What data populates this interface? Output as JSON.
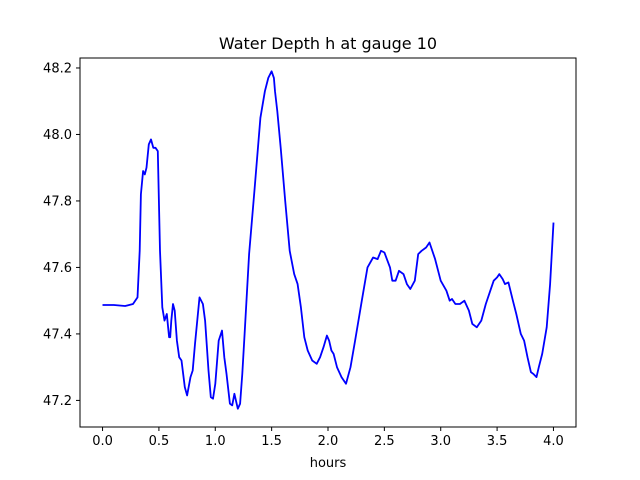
{
  "chart_data": {
    "type": "line",
    "title": "Water Depth h at gauge 10",
    "xlabel": "hours",
    "ylabel": "",
    "xlim": [
      -0.2,
      4.2
    ],
    "ylim": [
      47.12,
      48.23
    ],
    "xticks": [
      0.0,
      0.5,
      1.0,
      1.5,
      2.0,
      2.5,
      3.0,
      3.5,
      4.0
    ],
    "xtick_labels": [
      "0.0",
      "0.5",
      "1.0",
      "1.5",
      "2.0",
      "2.5",
      "3.0",
      "3.5",
      "4.0"
    ],
    "yticks": [
      47.2,
      47.4,
      47.6,
      47.8,
      48.0,
      48.2
    ],
    "ytick_labels": [
      "47.2",
      "47.4",
      "47.6",
      "47.8",
      "48.0",
      "48.2"
    ],
    "grid": false,
    "series": [
      {
        "color": "#0000ff",
        "x": [
          0.0,
          0.1,
          0.2,
          0.27,
          0.31,
          0.33,
          0.34,
          0.36,
          0.375,
          0.39,
          0.41,
          0.43,
          0.45,
          0.47,
          0.49,
          0.51,
          0.53,
          0.55,
          0.57,
          0.59,
          0.6,
          0.61,
          0.625,
          0.64,
          0.66,
          0.68,
          0.7,
          0.73,
          0.75,
          0.78,
          0.8,
          0.82,
          0.86,
          0.89,
          0.91,
          0.94,
          0.96,
          0.98,
          1.0,
          1.03,
          1.06,
          1.08,
          1.1,
          1.13,
          1.15,
          1.17,
          1.2,
          1.22,
          1.24,
          1.26,
          1.3,
          1.35,
          1.4,
          1.44,
          1.47,
          1.5,
          1.52,
          1.53,
          1.55,
          1.58,
          1.62,
          1.66,
          1.7,
          1.73,
          1.76,
          1.79,
          1.82,
          1.86,
          1.9,
          1.93,
          1.96,
          1.99,
          2.01,
          2.03,
          2.05,
          2.08,
          2.12,
          2.16,
          2.2,
          2.24,
          2.3,
          2.35,
          2.4,
          2.44,
          2.47,
          2.5,
          2.55,
          2.57,
          2.6,
          2.63,
          2.67,
          2.7,
          2.73,
          2.77,
          2.8,
          2.83,
          2.87,
          2.9,
          2.95,
          3.0,
          3.05,
          3.08,
          3.1,
          3.13,
          3.17,
          3.21,
          3.25,
          3.28,
          3.32,
          3.36,
          3.4,
          3.44,
          3.47,
          3.5,
          3.52,
          3.55,
          3.57,
          3.6,
          3.64,
          3.67,
          3.71,
          3.74,
          3.77,
          3.8,
          3.82,
          3.85,
          3.87,
          3.9,
          3.94,
          3.97,
          4.0
        ],
        "y": [
          47.487,
          47.487,
          47.484,
          47.49,
          47.51,
          47.65,
          47.82,
          47.89,
          47.88,
          47.9,
          47.97,
          47.985,
          47.96,
          47.96,
          47.95,
          47.65,
          47.48,
          47.44,
          47.46,
          47.39,
          47.39,
          47.44,
          47.49,
          47.47,
          47.38,
          47.33,
          47.32,
          47.24,
          47.215,
          47.27,
          47.29,
          47.37,
          47.51,
          47.49,
          47.44,
          47.29,
          47.21,
          47.205,
          47.25,
          47.38,
          47.41,
          47.33,
          47.28,
          47.19,
          47.185,
          47.22,
          47.175,
          47.19,
          47.28,
          47.4,
          47.64,
          47.84,
          48.05,
          48.13,
          48.17,
          48.19,
          48.17,
          48.13,
          48.07,
          47.96,
          47.8,
          47.65,
          47.58,
          47.55,
          47.48,
          47.39,
          47.35,
          47.32,
          47.31,
          47.33,
          47.36,
          47.395,
          47.38,
          47.35,
          47.34,
          47.3,
          47.27,
          47.25,
          47.3,
          47.38,
          47.5,
          47.6,
          47.63,
          47.625,
          47.65,
          47.645,
          47.6,
          47.56,
          47.56,
          47.59,
          47.58,
          47.55,
          47.535,
          47.56,
          47.64,
          47.65,
          47.66,
          47.675,
          47.625,
          47.56,
          47.53,
          47.5,
          47.505,
          47.49,
          47.49,
          47.5,
          47.47,
          47.43,
          47.42,
          47.44,
          47.49,
          47.53,
          47.56,
          47.57,
          47.58,
          47.565,
          47.55,
          47.555,
          47.5,
          47.46,
          47.4,
          47.38,
          47.33,
          47.285,
          47.28,
          47.27,
          47.3,
          47.34,
          47.42,
          47.55,
          47.735
        ]
      }
    ]
  }
}
